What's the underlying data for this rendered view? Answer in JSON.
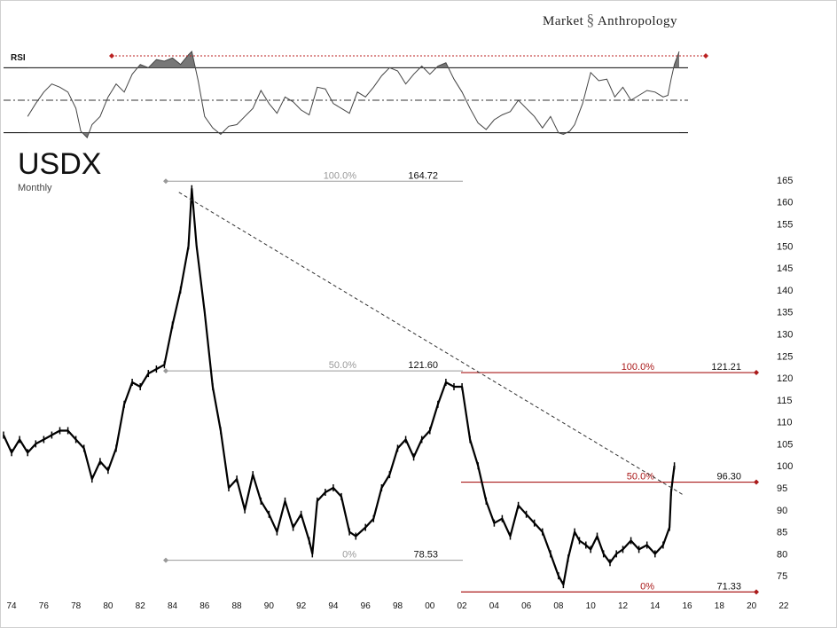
{
  "brand": {
    "name_left": "Market",
    "name_right": "Anthropology",
    "logo_icon": "dna-helix-icon"
  },
  "colors": {
    "price": "#000000",
    "fib_left": "#999999",
    "fib_right": "#aa1a1a",
    "rsi_fill": "#777777",
    "trend": "#333333"
  },
  "chart_data": {
    "type": "line",
    "title": "USDX",
    "subtitle": "Monthly",
    "xlim": [
      1973.5,
      2022.5
    ],
    "ylim": [
      71,
      167
    ],
    "x_ticks": [
      74,
      76,
      78,
      80,
      82,
      84,
      86,
      88,
      90,
      92,
      94,
      96,
      98,
      0,
      2,
      4,
      6,
      8,
      10,
      12,
      14,
      16,
      18,
      20,
      22
    ],
    "x_tick_labels": [
      "74",
      "76",
      "78",
      "80",
      "82",
      "84",
      "86",
      "88",
      "90",
      "92",
      "94",
      "96",
      "98",
      "00",
      "02",
      "04",
      "06",
      "08",
      "10",
      "12",
      "14",
      "16",
      "18",
      "20",
      "22"
    ],
    "y_ticks": [
      75,
      80,
      85,
      90,
      95,
      100,
      105,
      110,
      115,
      120,
      125,
      130,
      135,
      140,
      145,
      150,
      155,
      160,
      165
    ],
    "y_tick_labels": [
      "75",
      "80",
      "85",
      "90",
      "95",
      "100",
      "105",
      "110",
      "115",
      "120",
      "125",
      "130",
      "135",
      "140",
      "145",
      "150",
      "155",
      "160",
      "165"
    ],
    "series": [
      {
        "x": [
          1973.5,
          1974.0,
          1974.5,
          1975.0,
          1975.5,
          1976.0,
          1976.5,
          1977.0,
          1977.5,
          1978.0,
          1978.5,
          1979.0,
          1979.5,
          1980.0,
          1980.5,
          1981.0,
          1981.5,
          1982.0,
          1982.5,
          1983.0,
          1983.5,
          1984.0,
          1984.5,
          1985.0,
          1985.2,
          1985.5,
          1986.0,
          1986.5,
          1987.0,
          1987.5,
          1988.0,
          1988.5,
          1989.0,
          1989.5,
          1990.0,
          1990.5,
          1991.0,
          1991.5,
          1992.0,
          1992.5,
          1992.7,
          1993.0,
          1993.5,
          1994.0,
          1994.5,
          1995.0,
          1995.4,
          1996.0,
          1996.5,
          1997.0,
          1997.5,
          1998.0,
          1998.5,
          1999.0,
          1999.5,
          2000.0,
          2000.5,
          2001.0,
          2001.5,
          2002.0,
          2002.5,
          2003.0,
          2003.5,
          2004.0,
          2004.5,
          2005.0,
          2005.5,
          2006.0,
          2006.5,
          2007.0,
          2007.5,
          2008.0,
          2008.3,
          2008.6,
          2009.0,
          2009.3,
          2009.7,
          2010.0,
          2010.4,
          2010.8,
          2011.2,
          2011.6,
          2012.0,
          2012.5,
          2013.0,
          2013.5,
          2014.0,
          2014.5,
          2014.9,
          2015.0,
          2015.1,
          2015.2
        ],
        "values": [
          107,
          103,
          106,
          103,
          105,
          106,
          107,
          108,
          108,
          106,
          104,
          97,
          101,
          99,
          104,
          114,
          119,
          118,
          121,
          122,
          123,
          132,
          140,
          150,
          163,
          150,
          135,
          118,
          108,
          95,
          97,
          90,
          98,
          92,
          89,
          85,
          92,
          86,
          89,
          83,
          80,
          92,
          94,
          95,
          93,
          85,
          84,
          86,
          88,
          95,
          98,
          104,
          106,
          102,
          106,
          108,
          114,
          119,
          118,
          118,
          106,
          100,
          92,
          87,
          88,
          84,
          91,
          89,
          87,
          85,
          80,
          75,
          73,
          79,
          85,
          83,
          82,
          81,
          84,
          80,
          78,
          80,
          81,
          83,
          81,
          82,
          80,
          82,
          86,
          94,
          97,
          100
        ]
      }
    ],
    "trendline": {
      "from": [
        1984.4,
        162.2
      ],
      "to": [
        2015.8,
        93.3
      ]
    },
    "fib_left": [
      {
        "level": "100.0%",
        "value": "164.72",
        "y": 164.72
      },
      {
        "level": "50.0%",
        "value": "121.60",
        "y": 121.6
      },
      {
        "level": "0%",
        "value": "78.53",
        "y": 78.53
      }
    ],
    "fib_right": [
      {
        "level": "100.0%",
        "value": "121.21",
        "y": 121.21
      },
      {
        "level": "50.0%",
        "value": "96.30",
        "y": 96.3
      },
      {
        "level": "0%",
        "value": "71.33",
        "y": 71.33
      }
    ],
    "rsi": {
      "label": "RSI",
      "ylim": [
        20,
        80
      ],
      "upper": 70,
      "mid": 50,
      "lower": 30,
      "x": [
        1975.0,
        1975.5,
        1976.0,
        1976.5,
        1977.0,
        1977.5,
        1978.0,
        1978.3,
        1978.7,
        1979.0,
        1979.5,
        1980.0,
        1980.5,
        1981.0,
        1981.5,
        1982.0,
        1982.5,
        1983.0,
        1983.5,
        1984.0,
        1984.5,
        1985.0,
        1985.2,
        1985.6,
        1986.0,
        1986.5,
        1987.0,
        1987.5,
        1988.0,
        1988.5,
        1989.0,
        1989.5,
        1990.0,
        1990.5,
        1991.0,
        1991.5,
        1992.0,
        1992.5,
        1993.0,
        1993.5,
        1994.0,
        1994.5,
        1995.0,
        1995.5,
        1996.0,
        1996.5,
        1997.0,
        1997.5,
        1998.0,
        1998.5,
        1999.0,
        1999.5,
        2000.0,
        2000.5,
        2001.0,
        2001.5,
        2002.0,
        2002.5,
        2003.0,
        2003.5,
        2004.0,
        2004.5,
        2005.0,
        2005.5,
        2006.0,
        2006.5,
        2007.0,
        2007.5,
        2008.0,
        2008.3,
        2008.7,
        2009.0,
        2009.5,
        2010.0,
        2010.5,
        2011.0,
        2011.5,
        2012.0,
        2012.5,
        2013.0,
        2013.5,
        2014.0,
        2014.5,
        2014.8,
        2015.0,
        2015.2,
        2015.5
      ],
      "values": [
        40,
        48,
        55,
        60,
        58,
        55,
        45,
        31,
        27,
        35,
        40,
        52,
        60,
        55,
        66,
        72,
        70,
        75,
        74,
        76,
        72,
        78,
        80,
        62,
        40,
        33,
        29,
        34,
        35,
        40,
        45,
        56,
        48,
        42,
        52,
        49,
        44,
        41,
        58,
        57,
        48,
        45,
        42,
        55,
        52,
        58,
        65,
        70,
        68,
        60,
        66,
        71,
        66,
        71,
        73,
        63,
        55,
        45,
        36,
        32,
        38,
        41,
        43,
        50,
        45,
        40,
        33,
        40,
        30,
        29,
        31,
        35,
        48,
        67,
        62,
        63,
        52,
        58,
        50,
        53,
        56,
        55,
        52,
        53,
        63,
        72,
        80
      ]
    }
  }
}
